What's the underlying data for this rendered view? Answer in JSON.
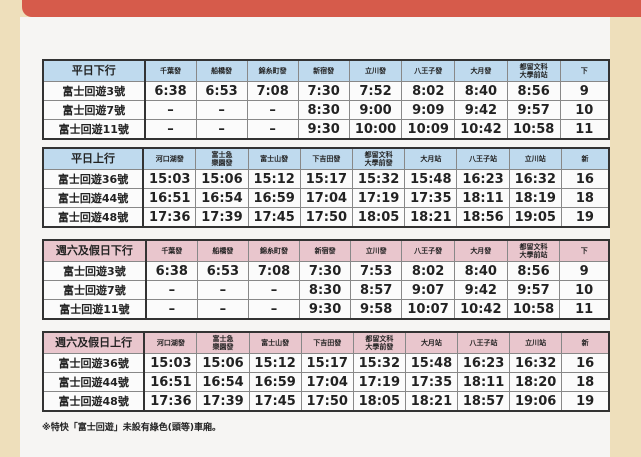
{
  "colors": {
    "blue_header": "#bfdaee",
    "pink_header": "#e9c6cd",
    "top_bar": "#d65b4b"
  },
  "tables": [
    {
      "title": "平日下行",
      "theme": "blue",
      "stations": [
        "千葉發",
        "船橋發",
        "錦糸町發",
        "新宿發",
        "立川發",
        "八王子發",
        "大月發",
        "都留文科\n大學前站",
        "下"
      ],
      "rows": [
        {
          "name": "富士回遊3號",
          "times": [
            "6:38",
            "6:53",
            "7:08",
            "7:30",
            "7:52",
            "8:02",
            "8:40",
            "8:56",
            "9"
          ]
        },
        {
          "name": "富士回遊7號",
          "times": [
            "–",
            "–",
            "–",
            "8:30",
            "9:00",
            "9:09",
            "9:42",
            "9:57",
            "10"
          ]
        },
        {
          "name": "富士回遊11號",
          "times": [
            "–",
            "–",
            "–",
            "9:30",
            "10:00",
            "10:09",
            "10:42",
            "10:58",
            "11"
          ]
        }
      ]
    },
    {
      "title": "平日上行",
      "theme": "blue",
      "stations": [
        "河口湖發",
        "富士急\n樂園發",
        "富士山發",
        "下吉田發",
        "都留文科\n大學前發",
        "大月站",
        "八王子站",
        "立川站",
        "新"
      ],
      "rows": [
        {
          "name": "富士回遊36號",
          "times": [
            "15:03",
            "15:06",
            "15:12",
            "15:17",
            "15:32",
            "15:48",
            "16:23",
            "16:32",
            "16"
          ]
        },
        {
          "name": "富士回遊44號",
          "times": [
            "16:51",
            "16:54",
            "16:59",
            "17:04",
            "17:19",
            "17:35",
            "18:11",
            "18:19",
            "18"
          ]
        },
        {
          "name": "富士回遊48號",
          "times": [
            "17:36",
            "17:39",
            "17:45",
            "17:50",
            "18:05",
            "18:21",
            "18:56",
            "19:05",
            "19"
          ]
        }
      ]
    },
    {
      "title": "週六及假日下行",
      "theme": "pink",
      "stations": [
        "千葉發",
        "船橋發",
        "錦糸町發",
        "新宿發",
        "立川發",
        "八王子發",
        "大月發",
        "都留文科\n大學前站",
        "下"
      ],
      "rows": [
        {
          "name": "富士回遊3號",
          "times": [
            "6:38",
            "6:53",
            "7:08",
            "7:30",
            "7:53",
            "8:02",
            "8:40",
            "8:56",
            "9"
          ]
        },
        {
          "name": "富士回遊7號",
          "times": [
            "–",
            "–",
            "–",
            "8:30",
            "8:57",
            "9:07",
            "9:42",
            "9:57",
            "10"
          ]
        },
        {
          "name": "富士回遊11號",
          "times": [
            "–",
            "–",
            "–",
            "9:30",
            "9:58",
            "10:07",
            "10:42",
            "10:58",
            "11"
          ]
        }
      ]
    },
    {
      "title": "週六及假日上行",
      "theme": "pink",
      "stations": [
        "河口湖發",
        "富士急\n樂園發",
        "富士山發",
        "下吉田發",
        "都留文科\n大學前發",
        "大月站",
        "八王子站",
        "立川站",
        "新"
      ],
      "rows": [
        {
          "name": "富士回遊36號",
          "times": [
            "15:03",
            "15:06",
            "15:12",
            "15:17",
            "15:32",
            "15:48",
            "16:23",
            "16:32",
            "16"
          ]
        },
        {
          "name": "富士回遊44號",
          "times": [
            "16:51",
            "16:54",
            "16:59",
            "17:04",
            "17:19",
            "17:35",
            "18:11",
            "18:20",
            "18"
          ]
        },
        {
          "name": "富士回遊48號",
          "times": [
            "17:36",
            "17:39",
            "17:45",
            "17:50",
            "18:05",
            "18:21",
            "18:57",
            "19:06",
            "19"
          ]
        }
      ]
    }
  ],
  "footnote": "※特快「富士回遊」未設有綠色(頭等)車廂。"
}
